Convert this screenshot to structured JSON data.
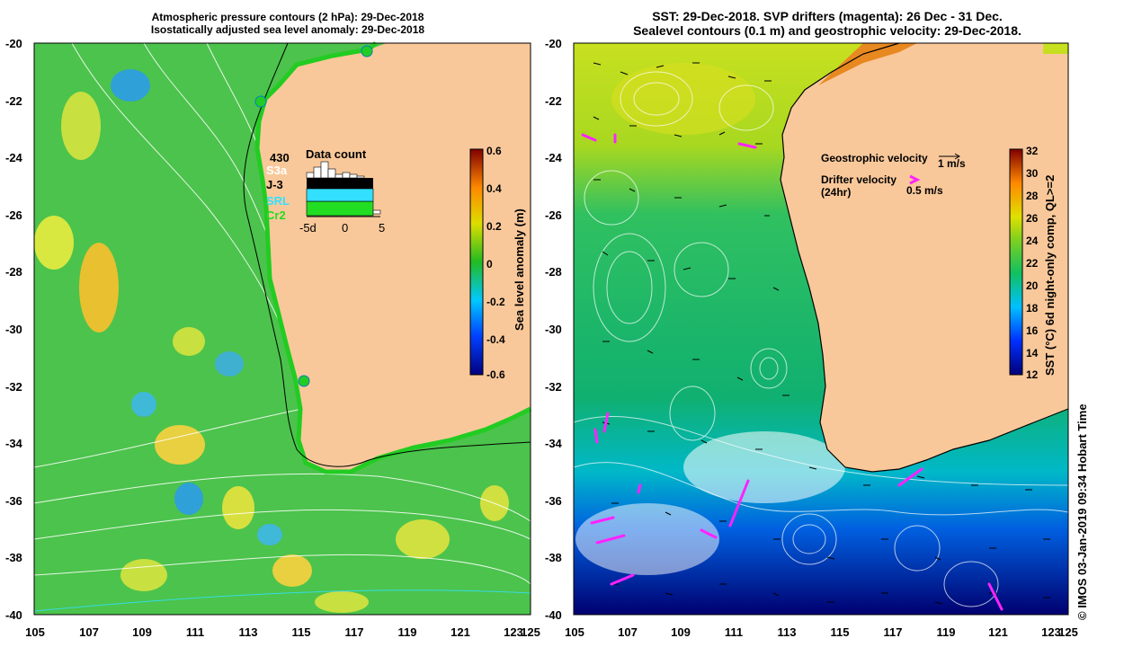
{
  "left_panel": {
    "title_line1": "Atmospheric pressure contours (2 hPa): 29-Dec-2018",
    "title_line2": "Isostatically adjusted sea level anomaly: 29-Dec-2018",
    "colorbar_label": "Sea level anomaly (m)",
    "colorbar_ticks": [
      "0.6",
      "0.4",
      "0.2",
      "0",
      "-0.2",
      "-0.4",
      "-0.6"
    ],
    "data_count": {
      "title": "Data count",
      "total": "430",
      "missions": [
        {
          "name": "S3a",
          "color": "#ffffff"
        },
        {
          "name": "J-3",
          "color": "#000000"
        },
        {
          "name": "SRL",
          "color": "#33e0ff"
        },
        {
          "name": "Cr2",
          "color": "#22dd22"
        }
      ],
      "x_ticks": [
        "-5d",
        "0",
        "5"
      ]
    }
  },
  "right_panel": {
    "title_line1": "SST: 29-Dec-2018. SVP drifters (magenta): 26 Dec - 31 Dec.",
    "title_line2": "Sealevel contours (0.1 m) and geostrophic velocity: 29-Dec-2018.",
    "legend": {
      "geostrophic_label": "Geostrophic velocity",
      "geostrophic_scale": "1 m/s",
      "drifter_label_line1": "Drifter velocity",
      "drifter_label_line2": "(24hr)",
      "drifter_scale": "0.5 m/s"
    },
    "colorbar_label": "SST (°C) 6d night-only comp, QL>=2",
    "colorbar_ticks": [
      "32",
      "30",
      "28",
      "26",
      "24",
      "22",
      "20",
      "18",
      "16",
      "14",
      "12"
    ]
  },
  "axes": {
    "y_ticks": [
      "-20",
      "-22",
      "-24",
      "-26",
      "-28",
      "-30",
      "-32",
      "-34",
      "-36",
      "-38",
      "-40"
    ],
    "x_ticks": [
      "105",
      "107",
      "109",
      "111",
      "113",
      "115",
      "117",
      "119",
      "121",
      "123",
      "125"
    ]
  },
  "credit": "©  IMOS 03-Jan-2019 09:34 Hobart Time",
  "colors": {
    "land": "#f9c89a",
    "sla_base": "#4cc34c",
    "magenta": "#ff22ff"
  }
}
